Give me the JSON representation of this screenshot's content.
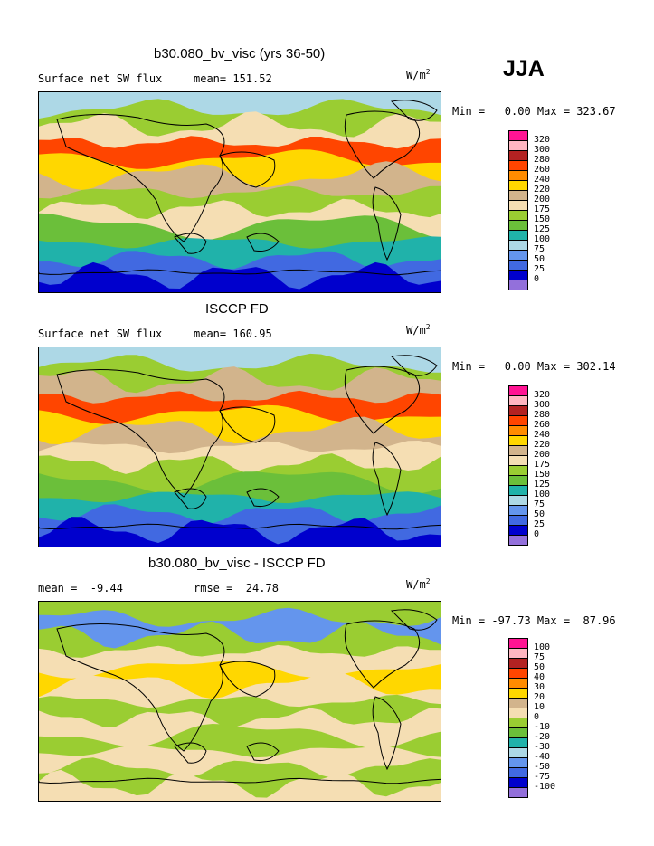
{
  "season": "JJA",
  "units_base": "W/m",
  "units_exp": "2",
  "panels": [
    {
      "title": "b30.080_bv_visc (yrs 36-50)",
      "left_label": "Surface net SW flux",
      "mid_label": "mean= 151.52",
      "minmax": "Min =   0.00 Max = 323.67"
    },
    {
      "title": "ISCCP FD",
      "left_label": "Surface net SW flux",
      "mid_label": "mean= 160.95",
      "minmax": "Min =   0.00 Max = 302.14"
    },
    {
      "title": "b30.080_bv_visc - ISCCP FD",
      "left_label": "mean =  -9.44",
      "mid_label": "rmse =  24.78",
      "minmax": "Min = -97.73 Max =  87.96"
    }
  ],
  "chart_data": [
    {
      "type": "heatmap",
      "title": "b30.080_bv_visc (yrs 36-50)",
      "variable": "Surface net SW flux",
      "units": "W/m2",
      "mean": 151.52,
      "min": 0.0,
      "max": 323.67,
      "contour_levels": [
        0,
        25,
        50,
        75,
        100,
        125,
        150,
        175,
        200,
        220,
        240,
        260,
        280,
        300,
        320
      ]
    },
    {
      "type": "heatmap",
      "title": "ISCCP FD",
      "variable": "Surface net SW flux",
      "units": "W/m2",
      "mean": 160.95,
      "min": 0.0,
      "max": 302.14,
      "contour_levels": [
        0,
        25,
        50,
        75,
        100,
        125,
        150,
        175,
        200,
        220,
        240,
        260,
        280,
        300,
        320
      ]
    },
    {
      "type": "heatmap",
      "title": "b30.080_bv_visc - ISCCP FD",
      "units": "W/m2",
      "mean": -9.44,
      "rmse": 24.78,
      "min": -97.73,
      "max": 87.96,
      "contour_levels": [
        -100,
        -75,
        -50,
        -40,
        -30,
        -20,
        -10,
        0,
        10,
        20,
        30,
        40,
        50,
        75,
        100
      ]
    }
  ],
  "colorbars": [
    {
      "labels": [
        "320",
        "300",
        "280",
        "260",
        "240",
        "220",
        "200",
        "175",
        "150",
        "125",
        "100",
        "75",
        "50",
        "25",
        "0"
      ],
      "colors": [
        "#ff1493",
        "#ffb6c1",
        "#b22222",
        "#ff4500",
        "#ff8c00",
        "#ffd700",
        "#d2b48c",
        "#f5deb3",
        "#9acd32",
        "#6bbf3a",
        "#20b2aa",
        "#add8e6",
        "#6495ed",
        "#4169e1",
        "#0000cd",
        "#9370db"
      ]
    },
    {
      "labels": [
        "320",
        "300",
        "280",
        "260",
        "240",
        "220",
        "200",
        "175",
        "150",
        "125",
        "100",
        "75",
        "50",
        "25",
        "0"
      ],
      "colors": [
        "#ff1493",
        "#ffb6c1",
        "#b22222",
        "#ff4500",
        "#ff8c00",
        "#ffd700",
        "#d2b48c",
        "#f5deb3",
        "#9acd32",
        "#6bbf3a",
        "#20b2aa",
        "#add8e6",
        "#6495ed",
        "#4169e1",
        "#0000cd",
        "#9370db"
      ]
    },
    {
      "labels": [
        "100",
        "75",
        "50",
        "40",
        "30",
        "20",
        "10",
        "0",
        "-10",
        "-20",
        "-30",
        "-40",
        "-50",
        "-75",
        "-100"
      ],
      "colors": [
        "#ff1493",
        "#ffb6c1",
        "#b22222",
        "#ff4500",
        "#ff8c00",
        "#ffd700",
        "#d2b48c",
        "#f5deb3",
        "#9acd32",
        "#6bbf3a",
        "#20b2aa",
        "#add8e6",
        "#6495ed",
        "#4169e1",
        "#0000cd",
        "#9370db"
      ]
    }
  ],
  "maps": [
    {
      "bands": [
        {
          "color": "#add8e6"
        },
        {
          "color": "#9acd32"
        },
        {
          "color": "#f5deb3"
        },
        {
          "color": "#ff4500"
        },
        {
          "color": "#ffd700"
        },
        {
          "color": "#d2b48c"
        },
        {
          "color": "#9acd32"
        },
        {
          "color": "#f5deb3"
        },
        {
          "color": "#6bbf3a"
        },
        {
          "color": "#20b2aa"
        },
        {
          "color": "#4169e1"
        },
        {
          "color": "#0000cd"
        }
      ]
    },
    {
      "bands": [
        {
          "color": "#add8e6"
        },
        {
          "color": "#9acd32"
        },
        {
          "color": "#d2b48c"
        },
        {
          "color": "#ff4500"
        },
        {
          "color": "#ffd700"
        },
        {
          "color": "#d2b48c"
        },
        {
          "color": "#f5deb3"
        },
        {
          "color": "#9acd32"
        },
        {
          "color": "#6bbf3a"
        },
        {
          "color": "#20b2aa"
        },
        {
          "color": "#4169e1"
        },
        {
          "color": "#0000cd"
        }
      ]
    },
    {
      "bands": [
        {
          "color": "#9acd32"
        },
        {
          "color": "#6495ed"
        },
        {
          "color": "#9acd32"
        },
        {
          "color": "#f5deb3"
        },
        {
          "color": "#ffd700"
        },
        {
          "color": "#f5deb3"
        },
        {
          "color": "#9acd32"
        },
        {
          "color": "#f5deb3"
        },
        {
          "color": "#9acd32"
        },
        {
          "color": "#f5deb3"
        },
        {
          "color": "#9acd32"
        },
        {
          "color": "#f5deb3"
        }
      ]
    }
  ]
}
